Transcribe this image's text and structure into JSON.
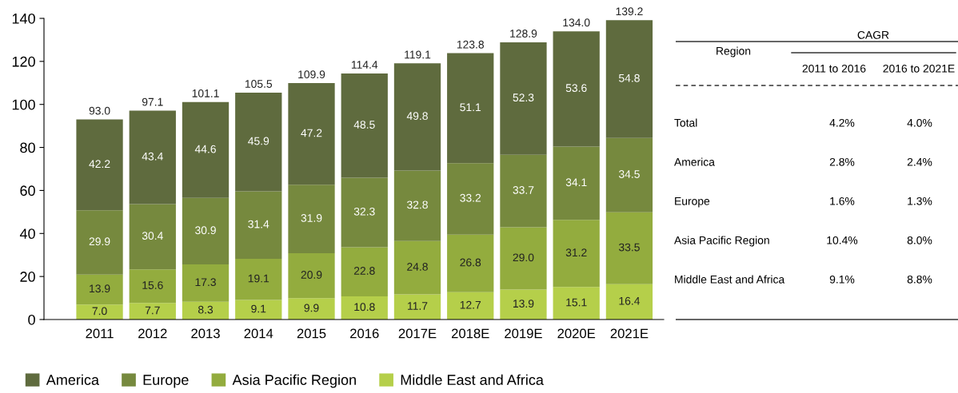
{
  "chart_data": [
    {
      "type": "bar",
      "stacked": true,
      "data_labels": true,
      "legend": "bottom",
      "grid": false,
      "categories": [
        "2011",
        "2012",
        "2013",
        "2014",
        "2015",
        "2016",
        "2017E",
        "2018E",
        "2019E",
        "2020E",
        "2021E"
      ],
      "ylim": [
        0,
        140
      ],
      "yticks": [
        0,
        20,
        40,
        60,
        80,
        100,
        120,
        140
      ],
      "series": [
        {
          "name": "Middle East and Africa",
          "color": "#b5cf4a",
          "values": [
            7.0,
            7.7,
            8.3,
            9.1,
            9.9,
            10.8,
            11.7,
            12.7,
            13.9,
            15.1,
            16.4
          ],
          "value_labels": [
            "7.0",
            "7.7",
            "8.3",
            "9.1",
            "9.9",
            "10.8",
            "11.7",
            "12.7",
            "13.9",
            "15.1",
            "16.4"
          ]
        },
        {
          "name": "Asia Pacific Region",
          "color": "#93ac3e",
          "values": [
            13.9,
            15.6,
            17.3,
            19.1,
            20.9,
            22.8,
            24.8,
            26.8,
            29.0,
            31.2,
            33.5
          ],
          "value_labels": [
            "13.9",
            "15.6",
            "17.3",
            "19.1",
            "20.9",
            "22.8",
            "24.8",
            "26.8",
            "29.0",
            "31.2",
            "33.5"
          ]
        },
        {
          "name": "Europe",
          "color": "#76893e",
          "values": [
            29.9,
            30.4,
            30.9,
            31.4,
            31.9,
            32.3,
            32.8,
            33.2,
            33.7,
            34.1,
            34.5
          ]
        },
        {
          "name": "America",
          "color": "#5f6b3e",
          "values": [
            42.2,
            43.4,
            44.6,
            45.9,
            47.2,
            48.5,
            49.8,
            51.1,
            52.3,
            53.6,
            54.8
          ]
        }
      ],
      "totals": [
        "93.0",
        "97.1",
        "101.1",
        "105.5",
        "109.9",
        "114.4",
        "119.1",
        "123.8",
        "128.9",
        "134.0",
        "139.2"
      ]
    },
    {
      "type": "other",
      "annotations": [
        "Region",
        "CAGR",
        "2011 to 2016",
        "2016 to 2021E",
        "Total",
        "4.2%",
        "4.0%",
        "America",
        "2.8%",
        "2.4%",
        "Europe",
        "1.6%",
        "1.3%",
        "Asia Pacific Region",
        "10.4%",
        "8.0%",
        "Middle East and Africa",
        "9.1%",
        "8.8%"
      ]
    }
  ]
}
